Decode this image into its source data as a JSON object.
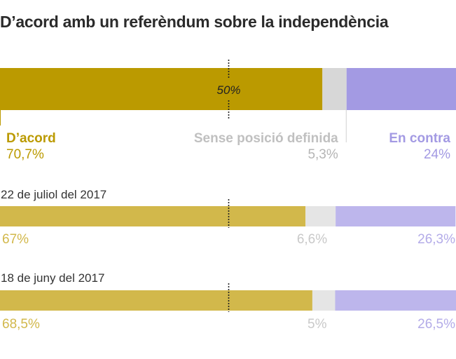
{
  "title": "D’acord amb un referèndum sobre la independència",
  "colors": {
    "main": [
      "#bb9a00",
      "#d7d7d7",
      "#a39ae3"
    ],
    "past": [
      "#d2b84b",
      "#e5e5e5",
      "#bdb6ec"
    ],
    "pct_main": [
      "#bb9a00",
      "#b5b5b5",
      "#a39ae3"
    ],
    "pct_past": [
      "#d2b84b",
      "#c9c9c9",
      "#b3abe8"
    ],
    "date": "#333333",
    "midline": "#222222"
  },
  "chart_data": {
    "type": "bar",
    "stacked": true,
    "orientation": "horizontal",
    "scale": [
      0,
      100
    ],
    "midline": {
      "value": 50,
      "label": "50%"
    },
    "category_names": [
      "D’acord",
      "Sense posició definida",
      "En contra"
    ],
    "rows": [
      {
        "date": "",
        "values": [
          70.7,
          5.3,
          24
        ],
        "labels": [
          "70,7%",
          "5,3%",
          "24%"
        ]
      },
      {
        "date": "22 de juliol del 2017",
        "values": [
          67,
          6.6,
          26.3
        ],
        "labels": [
          "67%",
          "6,6%",
          "26,3%"
        ]
      },
      {
        "date": "18 de juny del 2017",
        "values": [
          68.5,
          5,
          26.5
        ],
        "labels": [
          "68,5%",
          "5%",
          "26,5%"
        ]
      }
    ]
  }
}
